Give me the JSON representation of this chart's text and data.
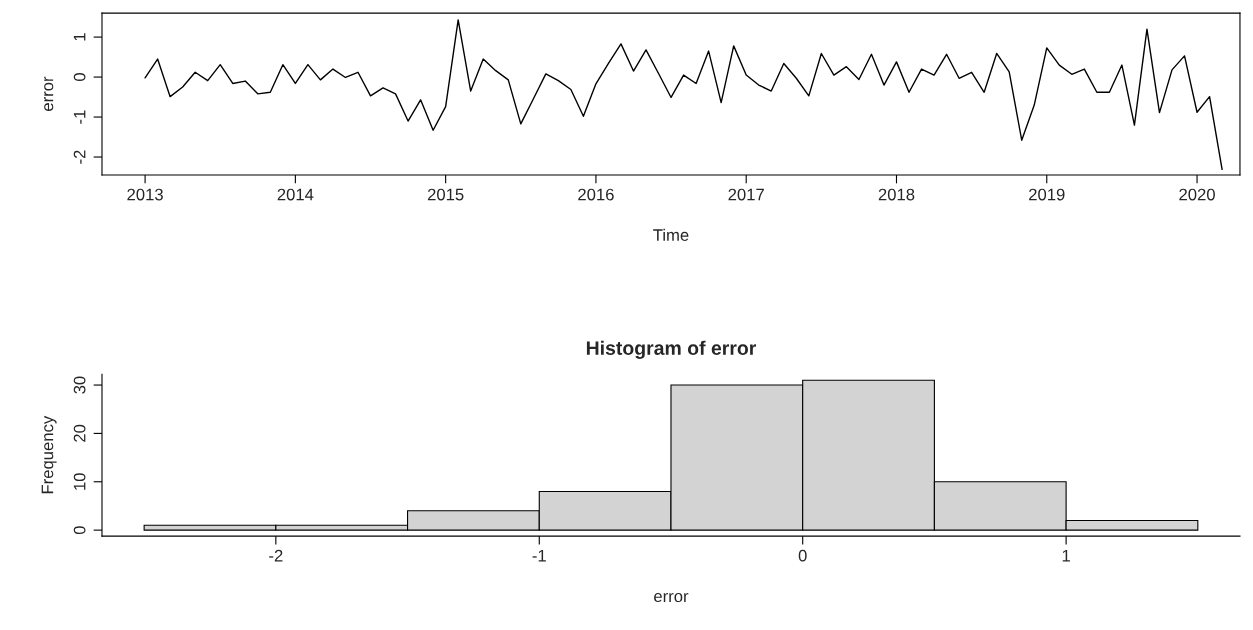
{
  "chart_data": [
    {
      "type": "line",
      "xlabel": "Time",
      "ylabel": "error",
      "color": "#000000",
      "x": [
        "2013-01",
        "2013-02",
        "2013-03",
        "2013-04",
        "2013-05",
        "2013-06",
        "2013-07",
        "2013-08",
        "2013-09",
        "2013-10",
        "2013-11",
        "2013-12",
        "2014-01",
        "2014-02",
        "2014-03",
        "2014-04",
        "2014-05",
        "2014-06",
        "2014-07",
        "2014-08",
        "2014-09",
        "2014-10",
        "2014-11",
        "2014-12",
        "2015-01",
        "2015-02",
        "2015-03",
        "2015-04",
        "2015-05",
        "2015-06",
        "2015-07",
        "2015-08",
        "2015-09",
        "2015-10",
        "2015-11",
        "2015-12",
        "2016-01",
        "2016-02",
        "2016-03",
        "2016-04",
        "2016-05",
        "2016-06",
        "2016-07",
        "2016-08",
        "2016-09",
        "2016-10",
        "2016-11",
        "2016-12",
        "2017-01",
        "2017-02",
        "2017-03",
        "2017-04",
        "2017-05",
        "2017-06",
        "2017-07",
        "2017-08",
        "2017-09",
        "2017-10",
        "2017-11",
        "2017-12",
        "2018-01",
        "2018-02",
        "2018-03",
        "2018-04",
        "2018-05",
        "2018-06",
        "2018-07",
        "2018-08",
        "2018-09",
        "2018-10",
        "2018-11",
        "2018-12",
        "2019-01",
        "2019-02",
        "2019-03",
        "2019-04",
        "2019-05",
        "2019-06",
        "2019-07",
        "2019-08",
        "2019-09",
        "2019-10",
        "2019-11",
        "2019-12",
        "2020-01",
        "2020-02",
        "2020-03"
      ],
      "values": [
        -0.02,
        0.45,
        -0.49,
        -0.25,
        0.12,
        -0.09,
        0.31,
        -0.16,
        -0.1,
        -0.42,
        -0.38,
        0.31,
        -0.16,
        0.31,
        -0.07,
        0.2,
        -0.01,
        0.12,
        -0.47,
        -0.27,
        -0.42,
        -1.1,
        -0.57,
        -1.33,
        -0.74,
        1.43,
        -0.35,
        0.45,
        0.16,
        -0.07,
        -1.17,
        -0.55,
        0.08,
        -0.09,
        -0.31,
        -0.98,
        -0.17,
        0.34,
        0.83,
        0.15,
        0.68,
        0.09,
        -0.51,
        0.05,
        -0.16,
        0.65,
        -0.64,
        0.78,
        0.05,
        -0.2,
        -0.35,
        0.34,
        -0.03,
        -0.47,
        0.59,
        0.05,
        0.26,
        -0.06,
        0.57,
        -0.2,
        0.38,
        -0.38,
        0.2,
        0.05,
        0.57,
        -0.03,
        0.12,
        -0.38,
        0.59,
        0.13,
        -1.58,
        -0.7,
        0.73,
        0.3,
        0.07,
        0.2,
        -0.38,
        -0.38,
        0.3,
        -1.2,
        1.2,
        -0.89,
        0.18,
        0.53,
        -0.88,
        -0.49,
        -2.31
      ],
      "xlim": [
        "2012-09-18",
        "2020-04-14"
      ],
      "ylim": [
        -2.45,
        1.6
      ],
      "xticks": [
        {
          "value": "2013",
          "label": "2013"
        },
        {
          "value": "2014",
          "label": "2014"
        },
        {
          "value": "2015",
          "label": "2015"
        },
        {
          "value": "2016",
          "label": "2016"
        },
        {
          "value": "2017",
          "label": "2017"
        },
        {
          "value": "2018",
          "label": "2018"
        },
        {
          "value": "2019",
          "label": "2019"
        },
        {
          "value": "2020",
          "label": "2020"
        }
      ],
      "yticks": [
        -2,
        -1,
        0,
        1
      ],
      "grid": false
    },
    {
      "type": "histogram",
      "title": "Histogram of error",
      "xlabel": "error",
      "ylabel": "Frequency",
      "color": "#d3d3d3",
      "bins": [
        -2.5,
        -2,
        -1.5,
        -1,
        -0.5,
        0,
        0.5,
        1,
        1.5
      ],
      "values": [
        1,
        1,
        4,
        8,
        30,
        31,
        10,
        2
      ],
      "xlim": [
        -2.66,
        1.66
      ],
      "ylim": [
        -1.24,
        32.24
      ],
      "xticks": [
        -2,
        -1,
        0,
        1
      ],
      "yticks": [
        0,
        10,
        20,
        30
      ],
      "grid": false
    }
  ]
}
